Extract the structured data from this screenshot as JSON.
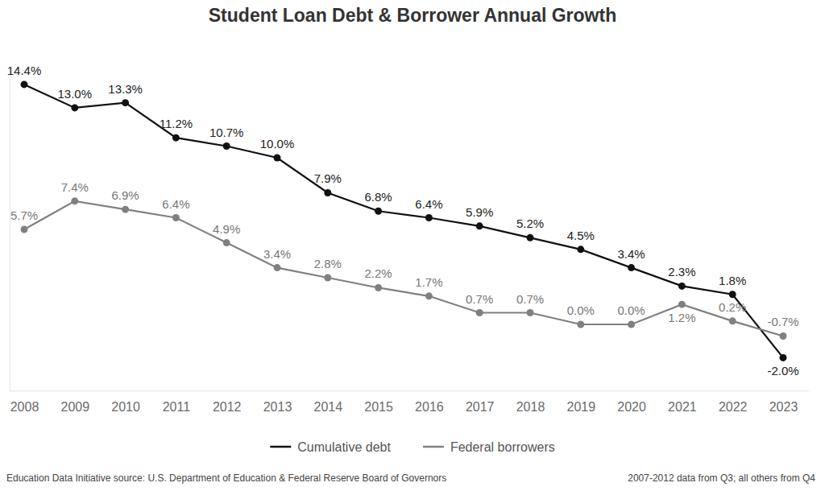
{
  "chart_data": {
    "type": "line",
    "title": "Student Loan Debt & Borrower Annual Growth",
    "categories": [
      "2008",
      "2009",
      "2010",
      "2011",
      "2012",
      "2013",
      "2014",
      "2015",
      "2016",
      "2017",
      "2018",
      "2019",
      "2020",
      "2021",
      "2022",
      "2023"
    ],
    "series": [
      {
        "name": "Cumulative debt",
        "color": "#111111",
        "marker": "circle",
        "line_style": "solid",
        "values": [
          14.4,
          13.0,
          13.3,
          11.2,
          10.7,
          10.0,
          7.9,
          6.8,
          6.4,
          5.9,
          5.2,
          4.5,
          3.4,
          2.3,
          1.8,
          -2.0
        ],
        "value_labels": [
          "14.4%",
          "13.0%",
          "13.3%",
          "11.2%",
          "10.7%",
          "10.0%",
          "7.9%",
          "6.8%",
          "6.4%",
          "5.9%",
          "5.2%",
          "4.5%",
          "3.4%",
          "2.3%",
          "1.8%",
          "-2.0%"
        ]
      },
      {
        "name": "Federal borrowers",
        "color": "#808080",
        "marker": "circle",
        "line_style": "solid",
        "values": [
          5.7,
          7.4,
          6.9,
          6.4,
          4.9,
          3.4,
          2.8,
          2.2,
          1.7,
          0.7,
          0.7,
          0.0,
          0.0,
          1.2,
          0.2,
          -0.7
        ],
        "value_labels": [
          "5.7%",
          "7.4%",
          "6.9%",
          "6.4%",
          "4.9%",
          "3.4%",
          "2.8%",
          "2.2%",
          "1.7%",
          "0.7%",
          "0.7%",
          "0.0%",
          "0.0%",
          "1.2%",
          "0.2%",
          "-0.7%"
        ]
      }
    ],
    "ylim": [
      -4,
      15
    ],
    "yticks": [],
    "grid": false,
    "legend": "bottom",
    "data_labels": true,
    "tick_labels": "x",
    "annotations": [
      "Education Data Initiative source: U.S. Department of Education & Federal Reserve Board of Governors",
      "2007-2012 data from Q3; all others from Q4"
    ]
  }
}
